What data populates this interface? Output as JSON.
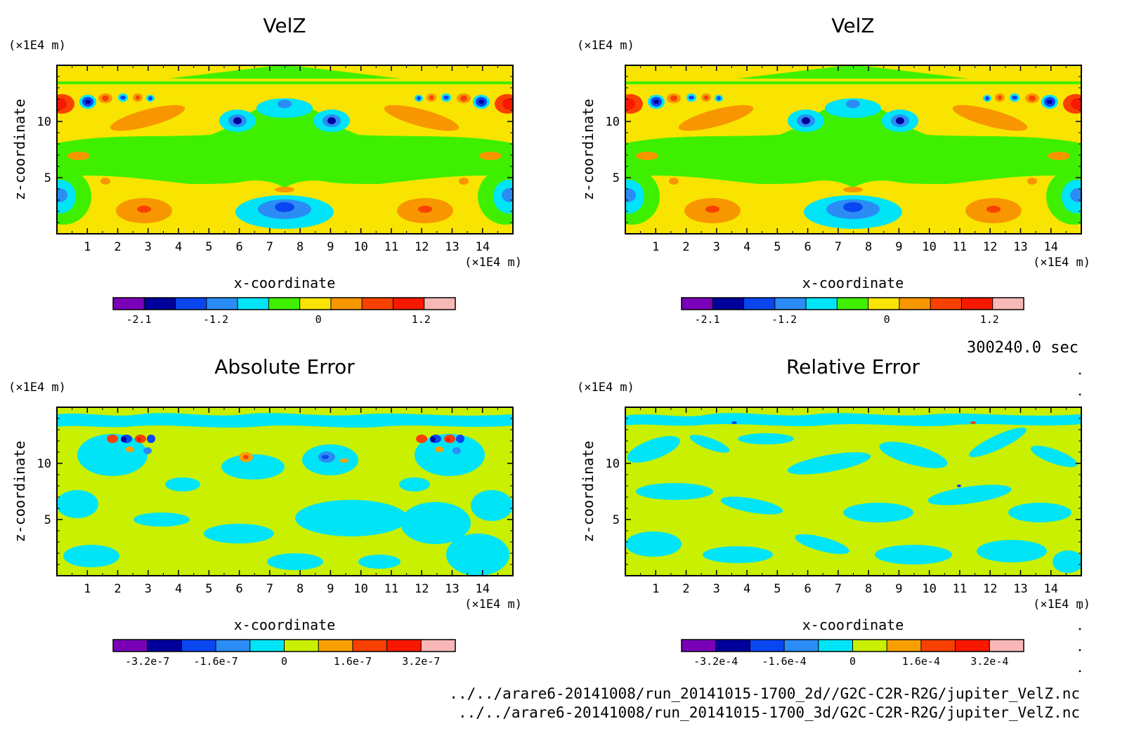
{
  "time_label": "300240.0 sec",
  "file_paths": [
    "../../arare6-20141008/run_20141015-1700_2d//G2C-C2R-R2G/jupiter_VelZ.nc",
    "../../arare6-20141008/run_20141015-1700_3d/G2C-C2R-R2G/jupiter_VelZ.nc"
  ],
  "chart_data": [
    {
      "type": "heatmap",
      "title": "VelZ",
      "xlabel": "x-coordinate",
      "ylabel": "z-coordinate",
      "x_unit": "(×1E4 m)",
      "y_unit": "(×1E4 m)",
      "xlim": [
        0,
        15
      ],
      "ylim": [
        0,
        15
      ],
      "x_ticks": [
        "1",
        "2",
        "3",
        "4",
        "5",
        "6",
        "7",
        "8",
        "9",
        "10",
        "11",
        "12",
        "13",
        "14"
      ],
      "y_ticks": [
        "5",
        "10"
      ],
      "colorbar": {
        "colors": [
          "#7a00b8",
          "#00009a",
          "#0a46f0",
          "#2a8cf4",
          "#00e4f8",
          "#3ef000",
          "#f8e400",
          "#f89600",
          "#f84000",
          "#f81800",
          "#f8b8b8"
        ],
        "tick_labels": [
          "-2.1",
          "-1.2",
          "0",
          "1.2"
        ],
        "tick_positions": [
          -2.1,
          -1.2,
          0,
          1.2
        ],
        "range": [
          -2.4,
          1.6
        ]
      }
    },
    {
      "type": "heatmap",
      "title": "VelZ",
      "xlabel": "x-coordinate",
      "ylabel": "z-coordinate",
      "x_unit": "(×1E4 m)",
      "y_unit": "(×1E4 m)",
      "xlim": [
        0,
        15
      ],
      "ylim": [
        0,
        15
      ],
      "x_ticks": [
        "1",
        "2",
        "3",
        "4",
        "5",
        "6",
        "7",
        "8",
        "9",
        "10",
        "11",
        "12",
        "13",
        "14"
      ],
      "y_ticks": [
        "5",
        "10"
      ],
      "colorbar": {
        "colors": [
          "#7a00b8",
          "#00009a",
          "#0a46f0",
          "#2a8cf4",
          "#00e4f8",
          "#3ef000",
          "#f8e400",
          "#f89600",
          "#f84000",
          "#f81800",
          "#f8b8b8"
        ],
        "tick_labels": [
          "-2.1",
          "-1.2",
          "0",
          "1.2"
        ],
        "tick_positions": [
          -2.1,
          -1.2,
          0,
          1.2
        ],
        "range": [
          -2.4,
          1.6
        ]
      }
    },
    {
      "type": "heatmap",
      "title": "Absolute Error",
      "xlabel": "x-coordinate",
      "ylabel": "z-coordinate",
      "x_unit": "(×1E4 m)",
      "y_unit": "(×1E4 m)",
      "xlim": [
        0,
        15
      ],
      "ylim": [
        0,
        15
      ],
      "x_ticks": [
        "1",
        "2",
        "3",
        "4",
        "5",
        "6",
        "7",
        "8",
        "9",
        "10",
        "11",
        "12",
        "13",
        "14"
      ],
      "y_ticks": [
        "5",
        "10"
      ],
      "colorbar": {
        "colors": [
          "#7a00b8",
          "#00009a",
          "#0a46f0",
          "#2a8cf4",
          "#00e4f8",
          "#c8f000",
          "#f8a000",
          "#f84000",
          "#f81800",
          "#f8b8b8"
        ],
        "tick_labels": [
          "-3.2e-7",
          "-1.6e-7",
          "0",
          "1.6e-7",
          "3.2e-7"
        ],
        "tick_positions": [
          -3.2e-07,
          -1.6e-07,
          0,
          1.6e-07,
          3.2e-07
        ],
        "range": [
          -4e-07,
          4e-07
        ]
      }
    },
    {
      "type": "heatmap",
      "title": "Relative Error",
      "xlabel": "x-coordinate",
      "ylabel": "z-coordinate",
      "x_unit": "(×1E4 m)",
      "y_unit": "(×1E4 m)",
      "xlim": [
        0,
        15
      ],
      "ylim": [
        0,
        15
      ],
      "x_ticks": [
        "1",
        "2",
        "3",
        "4",
        "5",
        "6",
        "7",
        "8",
        "9",
        "10",
        "11",
        "12",
        "13",
        "14"
      ],
      "y_ticks": [
        "5",
        "10"
      ],
      "colorbar": {
        "colors": [
          "#7a00b8",
          "#00009a",
          "#0a46f0",
          "#2a8cf4",
          "#00e4f8",
          "#c8f000",
          "#f8a000",
          "#f84000",
          "#f81800",
          "#f8b8b8"
        ],
        "tick_labels": [
          "-3.2e-4",
          "-1.6e-4",
          "0",
          "1.6e-4",
          "3.2e-4"
        ],
        "tick_positions": [
          -0.00032,
          -0.00016,
          0,
          0.00016,
          0.00032
        ],
        "range": [
          -0.0004,
          0.0004
        ]
      }
    }
  ]
}
